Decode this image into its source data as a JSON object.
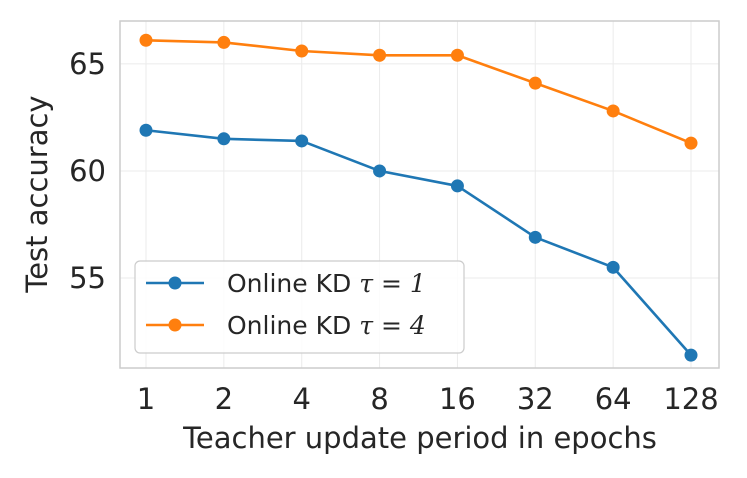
{
  "chart_data": {
    "type": "line",
    "categories": [
      "1",
      "2",
      "4",
      "8",
      "16",
      "32",
      "64",
      "128"
    ],
    "xlabel": "Teacher update period in epochs",
    "ylabel": "Test accuracy",
    "ylim": [
      50.8,
      67.0
    ],
    "yticks": [
      55,
      60,
      65
    ],
    "grid": true,
    "legend_position": "lower-left",
    "series": [
      {
        "name": "Online KD τ = 1",
        "name_prefix": "Online KD ",
        "name_math": "τ = 1",
        "color": "#1f77b4",
        "values": [
          61.9,
          61.5,
          61.4,
          60.0,
          59.3,
          56.9,
          55.5,
          51.4
        ]
      },
      {
        "name": "Online KD τ = 4",
        "name_prefix": "Online KD ",
        "name_math": "τ = 4",
        "color": "#ff7f0e",
        "values": [
          66.1,
          66.0,
          65.6,
          65.4,
          65.4,
          64.1,
          62.8,
          61.3
        ]
      }
    ]
  }
}
